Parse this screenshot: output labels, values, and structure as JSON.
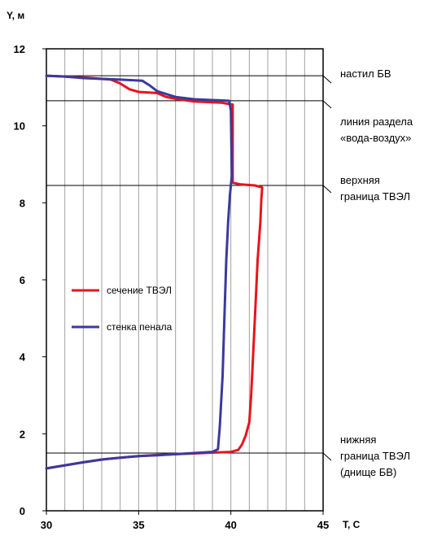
{
  "chart_data": {
    "type": "line",
    "xlabel": "T, C",
    "ylabel": "Y, м",
    "xlim": [
      30,
      45
    ],
    "ylim": [
      0,
      12
    ],
    "x_ticks": [
      "30",
      "35",
      "40",
      "45"
    ],
    "y_ticks": [
      "0",
      "2",
      "4",
      "6",
      "8",
      "10",
      "12"
    ],
    "x_grid_step": 1,
    "grid": "vertical",
    "legend_position": "center-left",
    "series": [
      {
        "name": "сечение ТВЭЛ",
        "color": "#e8141c",
        "points": [
          [
            30.0,
            1.1
          ],
          [
            31.0,
            1.18
          ],
          [
            32.0,
            1.26
          ],
          [
            33.0,
            1.33
          ],
          [
            34.0,
            1.38
          ],
          [
            35.0,
            1.42
          ],
          [
            36.0,
            1.45
          ],
          [
            37.0,
            1.47
          ],
          [
            38.0,
            1.49
          ],
          [
            39.0,
            1.51
          ],
          [
            40.0,
            1.53
          ],
          [
            40.4,
            1.58
          ],
          [
            40.6,
            1.72
          ],
          [
            40.8,
            1.95
          ],
          [
            41.0,
            2.3
          ],
          [
            41.1,
            3.0
          ],
          [
            41.2,
            4.0
          ],
          [
            41.35,
            5.5
          ],
          [
            41.45,
            6.5
          ],
          [
            41.6,
            7.5
          ],
          [
            41.65,
            8.1
          ],
          [
            41.7,
            8.4
          ],
          [
            41.3,
            8.45
          ],
          [
            40.5,
            8.48
          ],
          [
            40.1,
            8.52
          ],
          [
            40.1,
            10.55
          ],
          [
            39.5,
            10.6
          ],
          [
            38.0,
            10.63
          ],
          [
            37.0,
            10.7
          ],
          [
            36.5,
            10.75
          ],
          [
            36.0,
            10.85
          ],
          [
            35.0,
            10.88
          ],
          [
            34.5,
            10.95
          ],
          [
            34.0,
            11.1
          ],
          [
            33.5,
            11.2
          ],
          [
            32.5,
            11.24
          ],
          [
            31.5,
            11.27
          ],
          [
            30.5,
            11.29
          ],
          [
            30.0,
            11.3
          ]
        ]
      },
      {
        "name": "стенка пенала",
        "color": "#3a3a9e",
        "points": [
          [
            30.0,
            1.1
          ],
          [
            31.0,
            1.18
          ],
          [
            32.0,
            1.26
          ],
          [
            33.0,
            1.33
          ],
          [
            34.0,
            1.38
          ],
          [
            35.0,
            1.42
          ],
          [
            36.0,
            1.44
          ],
          [
            37.0,
            1.47
          ],
          [
            38.0,
            1.5
          ],
          [
            39.0,
            1.53
          ],
          [
            39.3,
            1.6
          ],
          [
            39.4,
            2.2
          ],
          [
            39.55,
            3.5
          ],
          [
            39.65,
            5.0
          ],
          [
            39.75,
            6.5
          ],
          [
            39.85,
            7.5
          ],
          [
            39.95,
            8.2
          ],
          [
            40.05,
            8.7
          ],
          [
            40.0,
            10.4
          ],
          [
            39.9,
            10.65
          ],
          [
            39.0,
            10.67
          ],
          [
            38.0,
            10.69
          ],
          [
            37.0,
            10.75
          ],
          [
            36.0,
            10.9
          ],
          [
            35.6,
            11.05
          ],
          [
            35.2,
            11.17
          ],
          [
            34.0,
            11.2
          ],
          [
            32.0,
            11.24
          ],
          [
            31.0,
            11.28
          ],
          [
            30.0,
            11.3
          ]
        ]
      }
    ],
    "reference_lines": [
      {
        "y": 11.3,
        "label_lines": [
          "настил БВ"
        ]
      },
      {
        "y": 10.65,
        "label_lines": [
          "линия раздела",
          "«вода-воздух»"
        ]
      },
      {
        "y": 8.45,
        "label_lines": [
          "верхняя",
          "граница ТВЭЛ"
        ]
      },
      {
        "y": 1.5,
        "label_lines": [
          "нижняя",
          "граница ТВЭЛ",
          "(днище БВ)"
        ]
      }
    ]
  }
}
